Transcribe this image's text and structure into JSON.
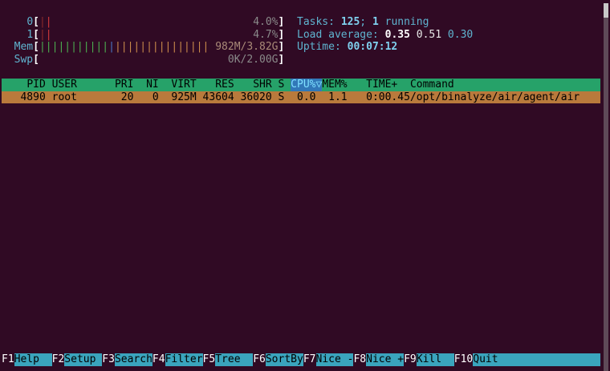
{
  "meters": {
    "bracket_open": "[",
    "bracket_close": "]",
    "cpus": [
      {
        "label": "0",
        "segments": [
          {
            "bars": "|",
            "color": "#8c2a2a"
          },
          {
            "bars": "|",
            "color": "#d23a3a"
          }
        ],
        "value": "4.0%"
      },
      {
        "label": "1",
        "segments": [
          {
            "bars": "|",
            "color": "#8c2a2a"
          },
          {
            "bars": "|",
            "color": "#d23a3a"
          }
        ],
        "value": "4.7%"
      }
    ],
    "mem": {
      "label": "Mem",
      "segments": [
        {
          "bars": "|||||||||||",
          "color": "#4caf50"
        },
        {
          "bars": "|",
          "color": "#4a78c8"
        },
        {
          "bars": "|||||||||||||||",
          "color": "#c98a4b"
        }
      ],
      "value": "982M/3.82G"
    },
    "swp": {
      "label": "Swp",
      "value": "0K/2.00G"
    }
  },
  "summary": {
    "tasks": {
      "label": "Tasks:",
      "total": "125",
      "separator": ";",
      "running": "1",
      "running_label": "running"
    },
    "load_average": {
      "label": "Load average:",
      "values": [
        "0.35",
        "0.51",
        "0.30"
      ]
    },
    "uptime": {
      "label": "Uptime:",
      "value": "00:07:12"
    }
  },
  "table": {
    "header": [
      "PID",
      "USER",
      "PRI",
      "NI",
      "VIRT",
      "RES",
      "SHR",
      "S",
      "CPU%",
      "MEM%",
      "TIME+",
      "Command"
    ],
    "sort_indicator": "▽",
    "rows": [
      [
        "4890",
        "root",
        "20",
        "0",
        "925M",
        "43604",
        "36020",
        "S",
        "0.0",
        "1.1",
        "0:00.45",
        "/opt/binalyze/air/agent/air"
      ]
    ]
  },
  "function_keys": [
    {
      "key": "F1",
      "label": "Help"
    },
    {
      "key": "F2",
      "label": "Setup"
    },
    {
      "key": "F3",
      "label": "Search"
    },
    {
      "key": "F4",
      "label": "Filter"
    },
    {
      "key": "F5",
      "label": "Tree"
    },
    {
      "key": "F6",
      "label": "SortBy"
    },
    {
      "key": "F7",
      "label": "Nice -"
    },
    {
      "key": "F8",
      "label": "Nice +"
    },
    {
      "key": "F9",
      "label": "Kill"
    },
    {
      "key": "F10",
      "label": "Quit"
    }
  ]
}
